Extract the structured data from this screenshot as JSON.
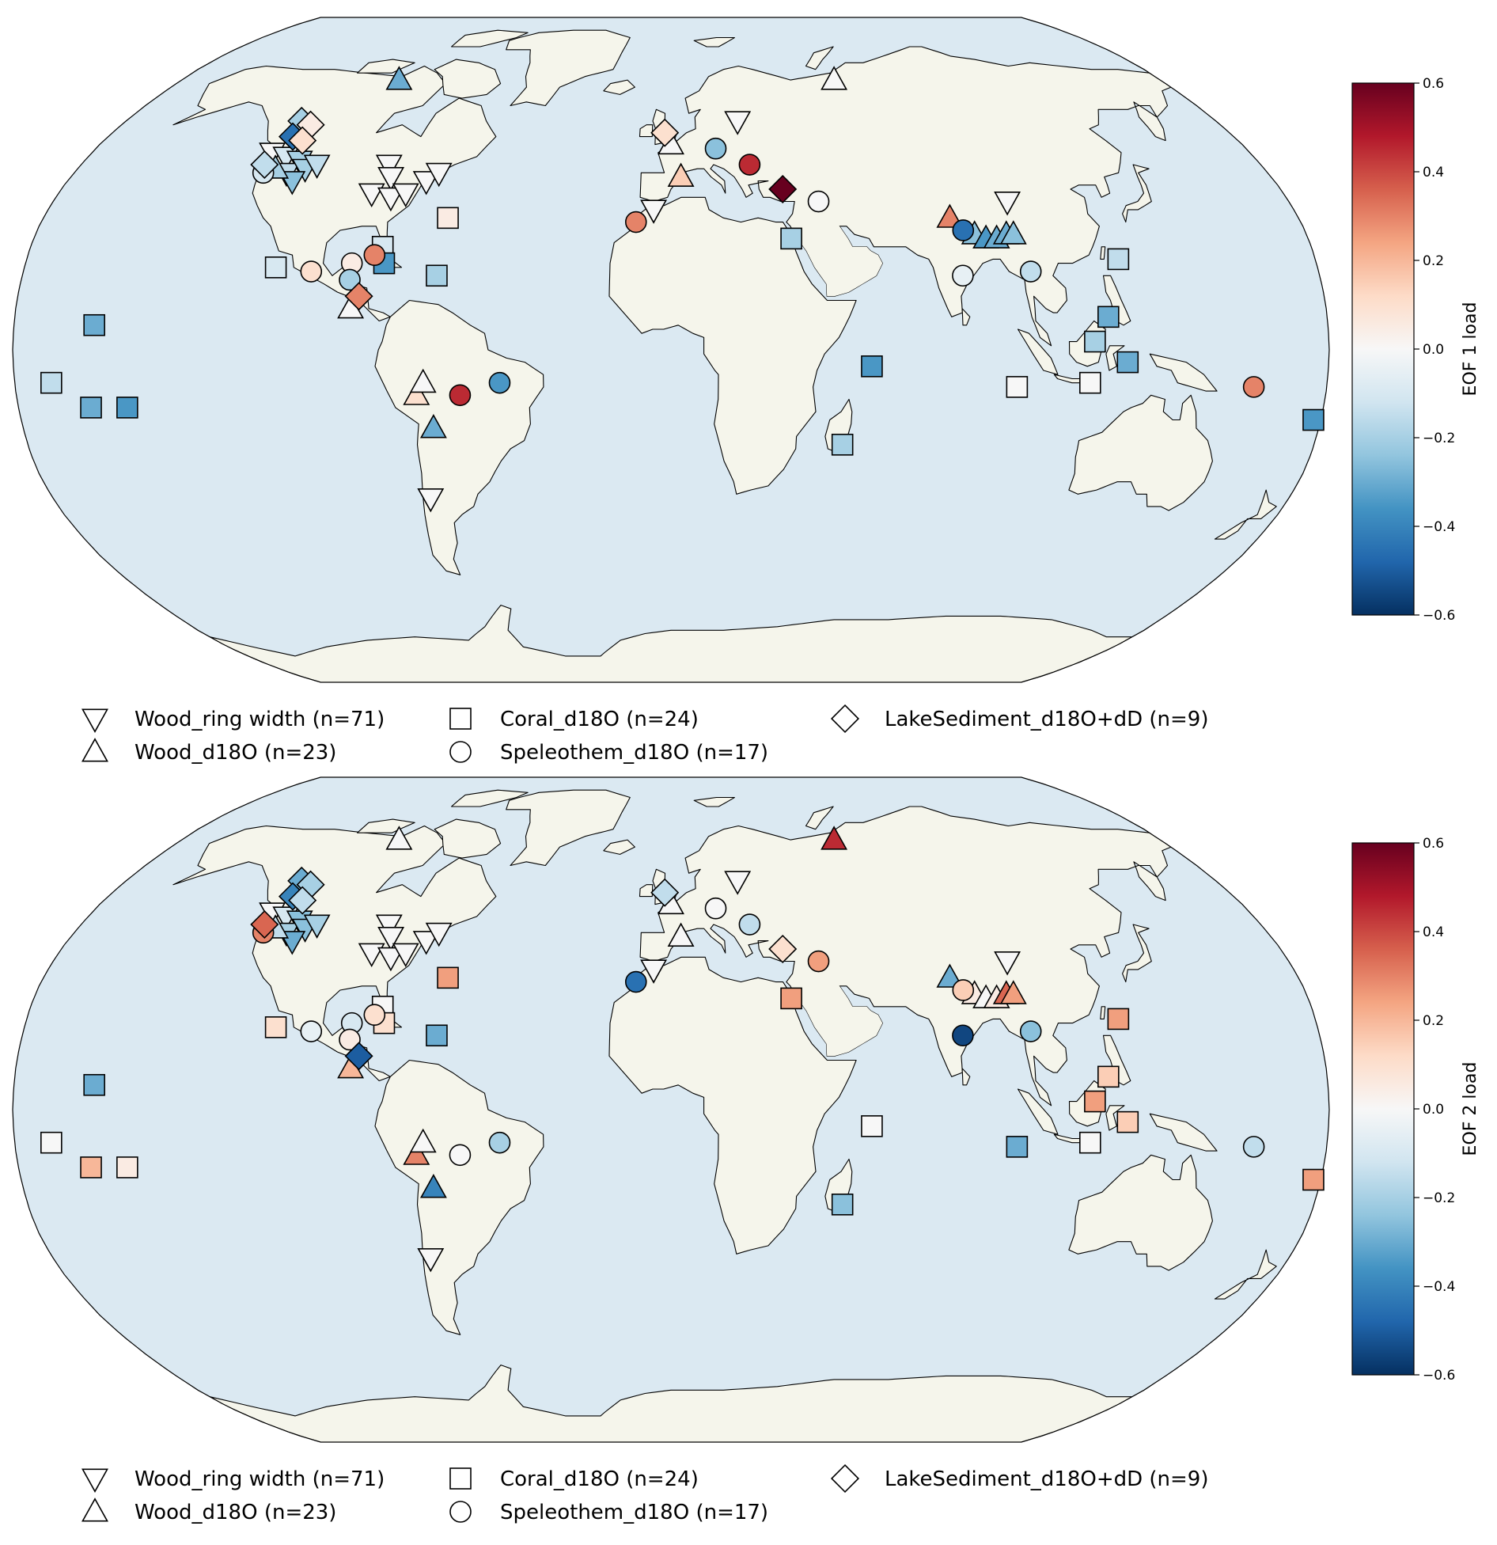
{
  "colors": {
    "ocean": "#dbe9f2",
    "land": "#f5f5eb",
    "marker_edge": "#000000",
    "colormap": [
      "#053061",
      "#2166ac",
      "#4393c3",
      "#92c5de",
      "#d1e5f0",
      "#f7f7f7",
      "#fddbc7",
      "#f4a582",
      "#d6604d",
      "#b2182b",
      "#67001f"
    ]
  },
  "legend": {
    "items": [
      {
        "label": "Wood_ring width (n=71)",
        "marker": "triangle-down-icon"
      },
      {
        "label": "Wood_d18O (n=23)",
        "marker": "triangle-up-icon"
      },
      {
        "label": "Coral_d18O (n=24)",
        "marker": "square-icon"
      },
      {
        "label": "Speleothem_d18O (n=17)",
        "marker": "circle-icon"
      },
      {
        "label": "LakeSediment_d18O+dD (n=9)",
        "marker": "diamond-icon"
      }
    ]
  },
  "panels": [
    {
      "colorbar_label": "EOF 1 load",
      "colorbar_ticks": [
        "0.6",
        "0.4",
        "0.2",
        "0.0",
        "−0.2",
        "−0.4",
        "−0.6"
      ],
      "vmin": -0.6,
      "vmax": 0.6,
      "sites": [
        {
          "type": "wood_d18o",
          "lon": -100,
          "lat": 67,
          "value": -0.3
        },
        {
          "type": "lake",
          "lon": -122,
          "lat": 56,
          "value": -0.2
        },
        {
          "type": "lake",
          "lon": -118,
          "lat": 55,
          "value": 0.05
        },
        {
          "type": "lake",
          "lon": -121,
          "lat": 52,
          "value": -0.45
        },
        {
          "type": "lake",
          "lon": -117,
          "lat": 51,
          "value": 0.1
        },
        {
          "type": "wood_rw",
          "lon": -124,
          "lat": 48,
          "value": 0.0
        },
        {
          "type": "wood_rw",
          "lon": -119,
          "lat": 47,
          "value": -0.1
        },
        {
          "type": "wood_rw",
          "lon": -114,
          "lat": 46,
          "value": -0.2
        },
        {
          "type": "lake",
          "lon": -124,
          "lat": 45,
          "value": -0.15
        },
        {
          "type": "speleo",
          "lon": -123,
          "lat": 43,
          "value": -0.1
        },
        {
          "type": "wood_d18o",
          "lon": -120,
          "lat": 44,
          "value": -0.2
        },
        {
          "type": "wood_rw",
          "lon": -116,
          "lat": 43,
          "value": -0.15
        },
        {
          "type": "wood_rw",
          "lon": -111,
          "lat": 44,
          "value": -0.2
        },
        {
          "type": "wood_rw",
          "lon": -108,
          "lat": 45,
          "value": -0.15
        },
        {
          "type": "wood_rw",
          "lon": -113,
          "lat": 41,
          "value": -0.25
        },
        {
          "type": "wood_rw",
          "lon": -86,
          "lat": 45,
          "value": 0.0
        },
        {
          "type": "wood_rw",
          "lon": -84,
          "lat": 42,
          "value": 0.0
        },
        {
          "type": "wood_rw",
          "lon": -88,
          "lat": 38,
          "value": 0.0
        },
        {
          "type": "wood_rw",
          "lon": -82,
          "lat": 37,
          "value": 0.0
        },
        {
          "type": "wood_rw",
          "lon": -78,
          "lat": 38,
          "value": 0.0
        },
        {
          "type": "wood_rw",
          "lon": -73,
          "lat": 41,
          "value": 0.0
        },
        {
          "type": "wood_rw",
          "lon": -70,
          "lat": 43,
          "value": 0.0
        },
        {
          "type": "coral",
          "lon": -64,
          "lat": 32,
          "value": 0.05
        },
        {
          "type": "coral",
          "lon": -81,
          "lat": 25,
          "value": -0.1
        },
        {
          "type": "coral",
          "lon": -80,
          "lat": 21,
          "value": -0.35
        },
        {
          "type": "speleo",
          "lon": -83,
          "lat": 23,
          "value": 0.3
        },
        {
          "type": "speleo",
          "lon": -89,
          "lat": 21,
          "value": 0.05
        },
        {
          "type": "speleo",
          "lon": -100,
          "lat": 19,
          "value": 0.1
        },
        {
          "type": "speleo",
          "lon": -89,
          "lat": 17,
          "value": -0.2
        },
        {
          "type": "coral",
          "lon": -110,
          "lat": 20,
          "value": -0.1
        },
        {
          "type": "coral",
          "lon": -65,
          "lat": 18,
          "value": -0.2
        },
        {
          "type": "lake",
          "lon": -86,
          "lat": 13,
          "value": 0.3
        },
        {
          "type": "wood_d18o",
          "lon": -88,
          "lat": 10,
          "value": 0.0
        },
        {
          "type": "coral",
          "lon": -158,
          "lat": 6,
          "value": -0.3
        },
        {
          "type": "coral",
          "lon": -170,
          "lat": -8,
          "value": -0.15
        },
        {
          "type": "coral",
          "lon": -160,
          "lat": -14,
          "value": -0.3
        },
        {
          "type": "coral",
          "lon": -150,
          "lat": -14,
          "value": -0.35
        },
        {
          "type": "wood_d18o",
          "lon": -70,
          "lat": -11,
          "value": 0.1
        },
        {
          "type": "wood_d18o",
          "lon": -68,
          "lat": -8,
          "value": 0.0
        },
        {
          "type": "speleo",
          "lon": -58,
          "lat": -11,
          "value": 0.45
        },
        {
          "type": "speleo",
          "lon": -47,
          "lat": -8,
          "value": -0.35
        },
        {
          "type": "wood_d18o",
          "lon": -66,
          "lat": -19,
          "value": -0.3
        },
        {
          "type": "wood_rw",
          "lon": -70,
          "lat": -36,
          "value": 0.0
        },
        {
          "type": "lake",
          "lon": -2,
          "lat": 53,
          "value": 0.1
        },
        {
          "type": "wood_d18o",
          "lon": 0,
          "lat": 50,
          "value": 0.0
        },
        {
          "type": "wood_rw",
          "lon": 22,
          "lat": 56,
          "value": 0.0
        },
        {
          "type": "speleo",
          "lon": 14,
          "lat": 49,
          "value": -0.25
        },
        {
          "type": "speleo",
          "lon": 24,
          "lat": 45,
          "value": 0.45
        },
        {
          "type": "wood_d18o",
          "lon": 3,
          "lat": 42,
          "value": 0.15
        },
        {
          "type": "lake",
          "lon": 33,
          "lat": 39,
          "value": 0.6
        },
        {
          "type": "speleo",
          "lon": 43,
          "lat": 36,
          "value": 0.0
        },
        {
          "type": "wood_rw",
          "lon": -5,
          "lat": 34,
          "value": 0.0
        },
        {
          "type": "speleo",
          "lon": -10,
          "lat": 31,
          "value": 0.3
        },
        {
          "type": "coral",
          "lon": 34,
          "lat": 27,
          "value": -0.2
        },
        {
          "type": "wood_d18o",
          "lon": 60,
          "lat": 67,
          "value": 0.0
        },
        {
          "type": "wood_d18o",
          "lon": 80,
          "lat": 32,
          "value": 0.3
        },
        {
          "type": "speleo",
          "lon": 83,
          "lat": 29,
          "value": -0.45
        },
        {
          "type": "wood_d18o",
          "lon": 86,
          "lat": 28,
          "value": -0.25
        },
        {
          "type": "wood_d18o",
          "lon": 89,
          "lat": 27,
          "value": -0.35
        },
        {
          "type": "wood_d18o",
          "lon": 92,
          "lat": 27,
          "value": -0.3
        },
        {
          "type": "wood_d18o",
          "lon": 95,
          "lat": 28,
          "value": -0.3
        },
        {
          "type": "wood_d18o",
          "lon": 97,
          "lat": 28,
          "value": -0.25
        },
        {
          "type": "wood_rw",
          "lon": 98,
          "lat": 36,
          "value": 0.0
        },
        {
          "type": "speleo",
          "lon": 81,
          "lat": 18,
          "value": -0.05
        },
        {
          "type": "speleo",
          "lon": 100,
          "lat": 19,
          "value": -0.15
        },
        {
          "type": "coral",
          "lon": 125,
          "lat": 22,
          "value": -0.15
        },
        {
          "type": "coral",
          "lon": 120,
          "lat": 8,
          "value": -0.3
        },
        {
          "type": "coral",
          "lon": 116,
          "lat": 2,
          "value": -0.2
        },
        {
          "type": "coral",
          "lon": 55,
          "lat": -4,
          "value": -0.35
        },
        {
          "type": "coral",
          "lon": 48,
          "lat": -23,
          "value": -0.2
        },
        {
          "type": "coral",
          "lon": 95,
          "lat": -9,
          "value": 0.0
        },
        {
          "type": "coral",
          "lon": 115,
          "lat": -8,
          "value": 0.0
        },
        {
          "type": "coral",
          "lon": 125,
          "lat": -3,
          "value": -0.3
        },
        {
          "type": "speleo",
          "lon": 160,
          "lat": -9,
          "value": 0.3
        },
        {
          "type": "coral",
          "lon": 178,
          "lat": -17,
          "value": -0.35
        }
      ]
    },
    {
      "colorbar_label": "EOF 2 load",
      "colorbar_ticks": [
        "0.6",
        "0.4",
        "0.2",
        "0.0",
        "−0.2",
        "−0.4",
        "−0.6"
      ],
      "vmin": -0.6,
      "vmax": 0.6,
      "sites": [
        {
          "type": "wood_d18o",
          "lon": -100,
          "lat": 67,
          "value": 0.0
        },
        {
          "type": "lake",
          "lon": -122,
          "lat": 56,
          "value": -0.3
        },
        {
          "type": "lake",
          "lon": -118,
          "lat": 55,
          "value": -0.2
        },
        {
          "type": "lake",
          "lon": -121,
          "lat": 52,
          "value": -0.4
        },
        {
          "type": "lake",
          "lon": -117,
          "lat": 51,
          "value": -0.15
        },
        {
          "type": "wood_rw",
          "lon": -124,
          "lat": 48,
          "value": 0.0
        },
        {
          "type": "wood_rw",
          "lon": -119,
          "lat": 47,
          "value": -0.1
        },
        {
          "type": "wood_rw",
          "lon": -114,
          "lat": 46,
          "value": -0.25
        },
        {
          "type": "lake",
          "lon": -124,
          "lat": 45,
          "value": 0.35
        },
        {
          "type": "speleo",
          "lon": -123,
          "lat": 43,
          "value": 0.3
        },
        {
          "type": "wood_d18o",
          "lon": -120,
          "lat": 44,
          "value": -0.15
        },
        {
          "type": "wood_rw",
          "lon": -116,
          "lat": 43,
          "value": -0.2
        },
        {
          "type": "wood_rw",
          "lon": -111,
          "lat": 44,
          "value": -0.25
        },
        {
          "type": "wood_rw",
          "lon": -108,
          "lat": 45,
          "value": -0.2
        },
        {
          "type": "wood_rw",
          "lon": -113,
          "lat": 41,
          "value": -0.3
        },
        {
          "type": "wood_rw",
          "lon": -86,
          "lat": 45,
          "value": 0.0
        },
        {
          "type": "wood_rw",
          "lon": -84,
          "lat": 42,
          "value": 0.0
        },
        {
          "type": "wood_rw",
          "lon": -88,
          "lat": 38,
          "value": 0.0
        },
        {
          "type": "wood_rw",
          "lon": -82,
          "lat": 37,
          "value": 0.0
        },
        {
          "type": "wood_rw",
          "lon": -78,
          "lat": 38,
          "value": 0.0
        },
        {
          "type": "wood_rw",
          "lon": -73,
          "lat": 41,
          "value": 0.0
        },
        {
          "type": "wood_rw",
          "lon": -70,
          "lat": 43,
          "value": 0.0
        },
        {
          "type": "coral",
          "lon": -64,
          "lat": 32,
          "value": 0.25
        },
        {
          "type": "coral",
          "lon": -81,
          "lat": 25,
          "value": 0.0
        },
        {
          "type": "coral",
          "lon": -80,
          "lat": 21,
          "value": 0.1
        },
        {
          "type": "speleo",
          "lon": -83,
          "lat": 23,
          "value": 0.1
        },
        {
          "type": "speleo",
          "lon": -89,
          "lat": 21,
          "value": -0.1
        },
        {
          "type": "speleo",
          "lon": -100,
          "lat": 19,
          "value": -0.05
        },
        {
          "type": "speleo",
          "lon": -89,
          "lat": 17,
          "value": 0.05
        },
        {
          "type": "coral",
          "lon": -110,
          "lat": 20,
          "value": 0.1
        },
        {
          "type": "coral",
          "lon": -65,
          "lat": 18,
          "value": -0.3
        },
        {
          "type": "lake",
          "lon": -86,
          "lat": 13,
          "value": -0.5
        },
        {
          "type": "wood_d18o",
          "lon": -88,
          "lat": 10,
          "value": 0.2
        },
        {
          "type": "coral",
          "lon": -158,
          "lat": 6,
          "value": -0.3
        },
        {
          "type": "coral",
          "lon": -170,
          "lat": -8,
          "value": 0.0
        },
        {
          "type": "coral",
          "lon": -160,
          "lat": -14,
          "value": 0.2
        },
        {
          "type": "coral",
          "lon": -150,
          "lat": -14,
          "value": 0.05
        },
        {
          "type": "wood_d18o",
          "lon": -70,
          "lat": -11,
          "value": 0.3
        },
        {
          "type": "wood_d18o",
          "lon": -68,
          "lat": -8,
          "value": 0.0
        },
        {
          "type": "speleo",
          "lon": -58,
          "lat": -11,
          "value": 0.0
        },
        {
          "type": "speleo",
          "lon": -47,
          "lat": -8,
          "value": -0.2
        },
        {
          "type": "wood_d18o",
          "lon": -66,
          "lat": -19,
          "value": -0.4
        },
        {
          "type": "wood_rw",
          "lon": -70,
          "lat": -36,
          "value": 0.0
        },
        {
          "type": "lake",
          "lon": -2,
          "lat": 53,
          "value": -0.15
        },
        {
          "type": "wood_d18o",
          "lon": 0,
          "lat": 50,
          "value": 0.0
        },
        {
          "type": "wood_rw",
          "lon": 22,
          "lat": 56,
          "value": 0.0
        },
        {
          "type": "speleo",
          "lon": 14,
          "lat": 49,
          "value": 0.0
        },
        {
          "type": "speleo",
          "lon": 24,
          "lat": 45,
          "value": -0.15
        },
        {
          "type": "wood_d18o",
          "lon": 3,
          "lat": 42,
          "value": 0.0
        },
        {
          "type": "lake",
          "lon": 33,
          "lat": 39,
          "value": 0.1
        },
        {
          "type": "speleo",
          "lon": 43,
          "lat": 36,
          "value": 0.25
        },
        {
          "type": "wood_rw",
          "lon": -5,
          "lat": 34,
          "value": 0.0
        },
        {
          "type": "speleo",
          "lon": -10,
          "lat": 31,
          "value": -0.45
        },
        {
          "type": "coral",
          "lon": 34,
          "lat": 27,
          "value": 0.25
        },
        {
          "type": "wood_d18o",
          "lon": 60,
          "lat": 67,
          "value": 0.45
        },
        {
          "type": "wood_d18o",
          "lon": 80,
          "lat": 32,
          "value": -0.3
        },
        {
          "type": "speleo",
          "lon": 83,
          "lat": 29,
          "value": 0.15
        },
        {
          "type": "wood_d18o",
          "lon": 86,
          "lat": 28,
          "value": 0.05
        },
        {
          "type": "wood_d18o",
          "lon": 89,
          "lat": 27,
          "value": 0.0
        },
        {
          "type": "wood_d18o",
          "lon": 92,
          "lat": 27,
          "value": 0.05
        },
        {
          "type": "wood_d18o",
          "lon": 95,
          "lat": 28,
          "value": 0.35
        },
        {
          "type": "wood_d18o",
          "lon": 97,
          "lat": 28,
          "value": 0.25
        },
        {
          "type": "wood_rw",
          "lon": 98,
          "lat": 36,
          "value": 0.0
        },
        {
          "type": "speleo",
          "lon": 81,
          "lat": 18,
          "value": -0.55
        },
        {
          "type": "speleo",
          "lon": 100,
          "lat": 19,
          "value": -0.25
        },
        {
          "type": "coral",
          "lon": 125,
          "lat": 22,
          "value": 0.25
        },
        {
          "type": "coral",
          "lon": 120,
          "lat": 8,
          "value": 0.15
        },
        {
          "type": "coral",
          "lon": 116,
          "lat": 2,
          "value": 0.25
        },
        {
          "type": "coral",
          "lon": 55,
          "lat": -4,
          "value": 0.0
        },
        {
          "type": "coral",
          "lon": 48,
          "lat": -23,
          "value": -0.25
        },
        {
          "type": "coral",
          "lon": 95,
          "lat": -9,
          "value": -0.3
        },
        {
          "type": "coral",
          "lon": 115,
          "lat": -8,
          "value": 0.0
        },
        {
          "type": "coral",
          "lon": 125,
          "lat": -3,
          "value": 0.15
        },
        {
          "type": "speleo",
          "lon": 160,
          "lat": -9,
          "value": -0.15
        },
        {
          "type": "coral",
          "lon": 178,
          "lat": -17,
          "value": 0.25
        }
      ]
    }
  ]
}
